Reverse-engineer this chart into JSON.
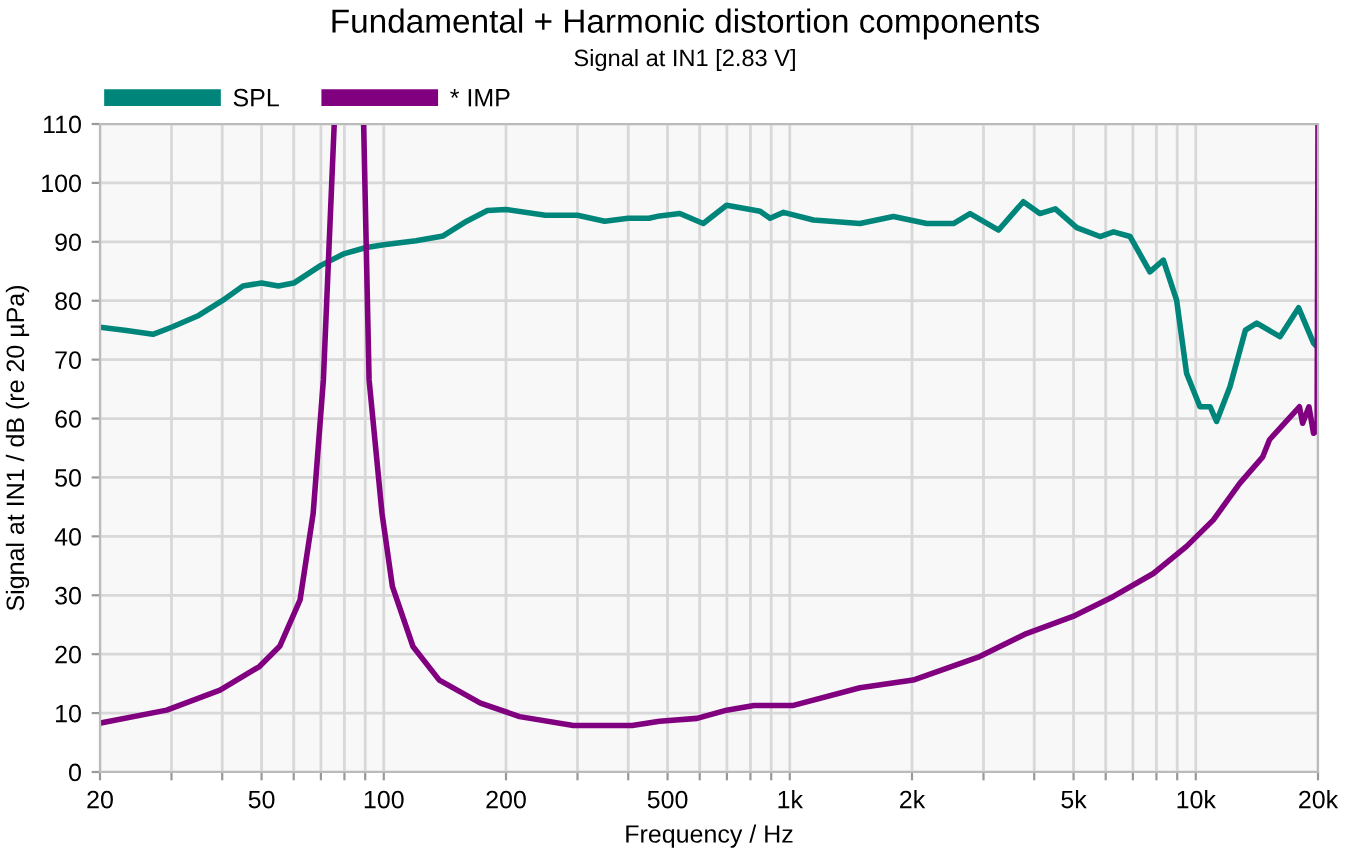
{
  "chart_data": {
    "type": "line",
    "title": "Fundamental + Harmonic distortion components",
    "subtitle": "Signal at IN1 [2.83 V]",
    "xlabel": "Frequency / Hz",
    "ylabel": "Signal at IN1 / dB (re 20 µPa)",
    "log": "x",
    "grid": true,
    "legend": "top left",
    "line_style": "solid",
    "marker": "none",
    "xlim": [
      20,
      20000
    ],
    "ylim": [
      0,
      110
    ],
    "xticks": [
      20,
      {
        "value": 30,
        "label": null
      },
      {
        "value": 40,
        "label": null
      },
      50,
      {
        "value": 60,
        "label": null
      },
      {
        "value": 70,
        "label": null
      },
      {
        "value": 80,
        "label": null
      },
      {
        "value": 90,
        "label": null
      },
      100,
      200,
      {
        "value": 300,
        "label": null
      },
      {
        "value": 400,
        "label": null
      },
      500,
      {
        "value": 600,
        "label": null
      },
      {
        "value": 700,
        "label": null
      },
      {
        "value": 800,
        "label": null
      },
      {
        "value": 900,
        "label": null
      },
      {
        "value": 1000,
        "label": "1k"
      },
      {
        "value": 2000,
        "label": "2k"
      },
      {
        "value": 3000,
        "label": null
      },
      {
        "value": 4000,
        "label": null
      },
      {
        "value": 5000,
        "label": "5k"
      },
      {
        "value": 6000,
        "label": null
      },
      {
        "value": 7000,
        "label": null
      },
      {
        "value": 8000,
        "label": null
      },
      {
        "value": 9000,
        "label": null
      },
      {
        "value": 10000,
        "label": "10k"
      },
      {
        "value": 20000,
        "label": "20k"
      }
    ],
    "yticks": [
      0,
      10,
      20,
      30,
      40,
      50,
      60,
      70,
      80,
      90,
      100,
      110
    ],
    "series": [
      {
        "name": "SPL",
        "color": "#00857a",
        "x": [
          20,
          23,
          27,
          30,
          35,
          40,
          45,
          50,
          55,
          60,
          70,
          80,
          90,
          100,
          120,
          140,
          160,
          180,
          200,
          250,
          300,
          350,
          400,
          450,
          478,
          536,
          612,
          699,
          845,
          894,
          965,
          1143,
          1489,
          1800,
          2174,
          2529,
          2780,
          3268,
          3760,
          4130,
          4510,
          5090,
          5810,
          6270,
          6890,
          7710,
          8320,
          8970,
          9490,
          10240,
          10850,
          11250,
          12140,
          13250,
          14130,
          16120,
          17920,
          19500,
          20000
        ],
        "values": [
          75.5,
          75,
          74.3,
          75.5,
          77.5,
          80,
          82.5,
          83,
          82.5,
          83,
          86,
          88,
          89,
          89.5,
          90.2,
          91,
          93.5,
          95.3,
          95.5,
          94.5,
          94.5,
          93.5,
          94,
          94,
          94.4,
          94.8,
          93.1,
          96.2,
          95.2,
          94,
          95,
          93.7,
          93.1,
          94.3,
          93.1,
          93.1,
          94.8,
          92,
          96.8,
          94.8,
          95.6,
          92.4,
          90.9,
          91.7,
          90.9,
          84.9,
          86.9,
          80.1,
          67.7,
          62,
          62,
          59.5,
          65.4,
          75,
          76.2,
          73.9,
          78.8,
          72.8,
          72
        ]
      },
      {
        "name": "* IMP",
        "color": "#800080",
        "x": [
          20,
          29.2,
          39.5,
          49.4,
          55.5,
          62.2,
          67,
          71,
          75.5,
          82,
          89.2,
          92,
          99,
          105,
          118,
          137,
          173,
          216,
          293,
          409,
          478,
          591,
          699,
          816,
          1021,
          1489,
          2013,
          2935,
          3827,
          4983,
          6270,
          7860,
          9490,
          11050,
          12830,
          14620,
          15190,
          18000,
          18330,
          19000,
          19500,
          19900,
          20000
        ],
        "values": [
          8.3,
          10.5,
          13.9,
          17.9,
          21.4,
          29.2,
          43.9,
          66.6,
          110,
          null,
          110,
          66.6,
          43.9,
          31.5,
          21.3,
          15.6,
          11.7,
          9.4,
          7.9,
          7.9,
          8.6,
          9.1,
          10.5,
          11.3,
          11.3,
          14.3,
          15.6,
          19.6,
          23.5,
          26.4,
          29.8,
          33.7,
          38.3,
          42.8,
          49,
          53.5,
          56.4,
          62,
          59.2,
          62,
          57.5,
          58,
          110
        ]
      }
    ]
  }
}
